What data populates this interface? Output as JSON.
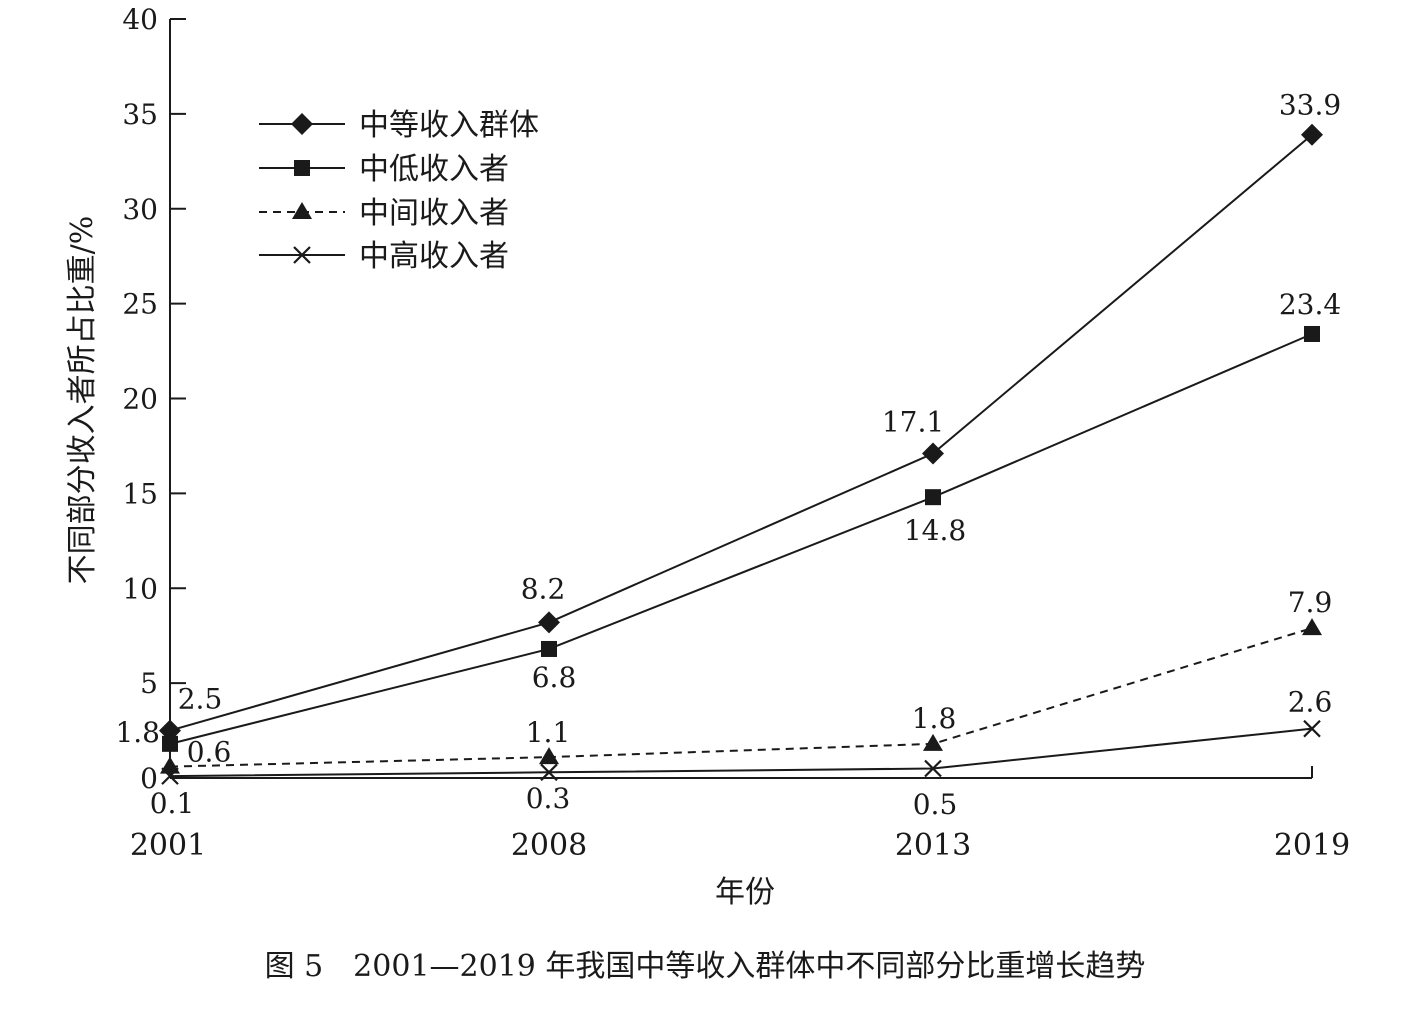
{
  "chart_data": {
    "type": "line",
    "title": "",
    "caption": "图 5　2001—2019 年我国中等收入群体中不同部分比重增长趋势",
    "xlabel": "年份",
    "ylabel": "不同部分收入者所占比重/%",
    "ylim": [
      0,
      40
    ],
    "yticks": [
      "0",
      "5",
      "10",
      "15",
      "20",
      "25",
      "30",
      "35",
      "40"
    ],
    "categories": [
      "2001",
      "2008",
      "2013",
      "2019"
    ],
    "grid": false,
    "legend_position": "top-left",
    "series": [
      {
        "name": "中等收入群体",
        "marker": "diamond",
        "dash": "solid",
        "values": [
          2.5,
          8.2,
          17.1,
          33.9
        ],
        "labels": [
          "2.5",
          "8.2",
          "17.1",
          "33.9"
        ]
      },
      {
        "name": "中低收入者",
        "marker": "square",
        "dash": "solid",
        "values": [
          1.8,
          6.8,
          14.8,
          23.4
        ],
        "labels": [
          "1.8",
          "6.8",
          "14.8",
          "23.4"
        ]
      },
      {
        "name": "中间收入者",
        "marker": "triangle",
        "dash": "dashed",
        "values": [
          0.6,
          1.1,
          1.8,
          7.9
        ],
        "labels": [
          "0.6",
          "1.1",
          "1.8",
          "7.9"
        ]
      },
      {
        "name": "中高收入者",
        "marker": "cross",
        "dash": "solid",
        "values": [
          0.1,
          0.3,
          0.5,
          2.6
        ],
        "labels": [
          "0.1",
          "0.3",
          "0.5",
          "2.6"
        ]
      }
    ]
  }
}
